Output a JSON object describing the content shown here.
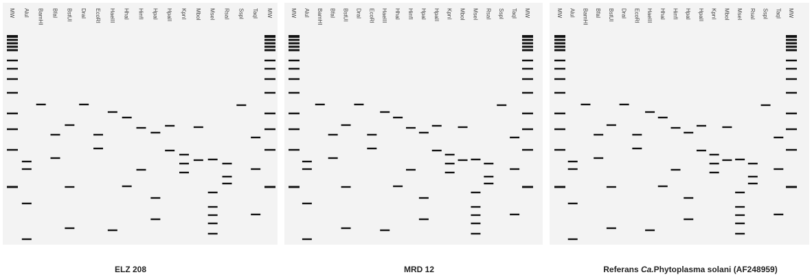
{
  "panels": [
    {
      "lanes": [
        "MW",
        "AluI",
        "BamHI",
        "BfaI",
        "BstUI",
        "DraI",
        "EcoRI",
        "HaeIII",
        "HhaI",
        "HinfI",
        "HpaI",
        "HpaII",
        "KpnI",
        "MboI",
        "MseI",
        "RsaI",
        "SspI",
        "TaqI",
        "MW"
      ],
      "caption": [
        "ELZ 208"
      ]
    },
    {
      "lanes": [
        "MW",
        "AluI",
        "BamHI",
        "BfaI",
        "BstUI",
        "DraI",
        "EcoRI",
        "HaeIII",
        "HhaI",
        "HinfI",
        "HpaI",
        "HpaII",
        "KpnI",
        "MboI",
        "MseI",
        "RsaI",
        "SspI",
        "TaqI",
        "MW"
      ],
      "caption": [
        "MRD 12"
      ]
    },
    {
      "lanes": [
        "MW",
        "AluI",
        "BamHI",
        "BfaI",
        "BstUI",
        "DraI",
        "EcoRI",
        "HaeIII",
        "HhaI",
        "HinfI",
        "HpaI",
        "HpaII",
        "KpnI",
        "MboI",
        "MseI",
        "RsaI",
        "SspI",
        "TaqI",
        "MW"
      ],
      "caption": [
        "Referans ",
        "Ca.",
        "Phytoplasma solani (AF248959)"
      ]
    }
  ]
}
